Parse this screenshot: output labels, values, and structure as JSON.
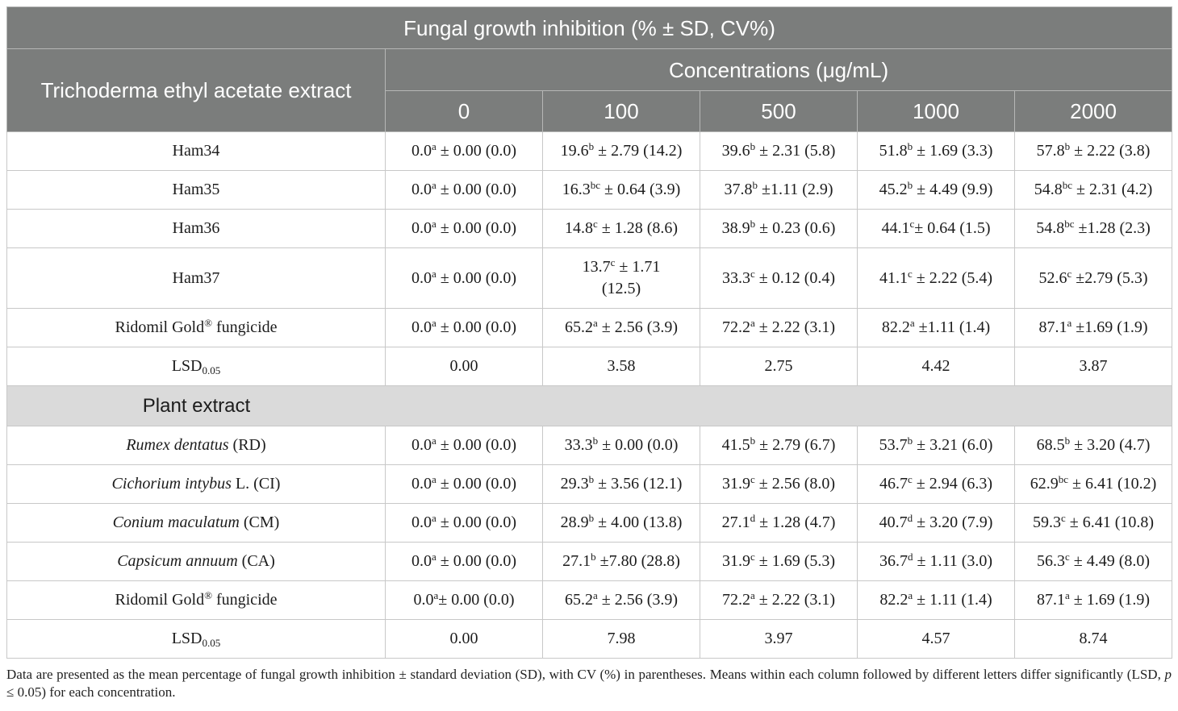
{
  "colors": {
    "header_bg": "#7b7d7c",
    "header_text": "#ffffff",
    "header_rule": "#b6b7b6",
    "section_bg": "#dadada",
    "grid_line": "#c8c8c8",
    "body_text": "#1c1c1c"
  },
  "header": {
    "title": "Fungal growth inhibition (% ± SD, CV%)",
    "row_header": "Trichoderma ethyl acetate extract",
    "concentrations_label": "Concentrations (μg/mL)",
    "concentrations": [
      "0",
      "100",
      "500",
      "1000",
      "2000"
    ]
  },
  "trichoderma": {
    "rows": [
      {
        "label": [
          {
            "t": "Ham34"
          }
        ],
        "values": [
          {
            "v": "0.0",
            "sup": "a",
            "rest": " ± 0.00 (0.0)"
          },
          {
            "v": "19.6",
            "sup": "b",
            "rest": " ± 2.79 (14.2)"
          },
          {
            "v": "39.6",
            "sup": "b",
            "rest": " ± 2.31 (5.8)"
          },
          {
            "v": "51.8",
            "sup": "b",
            "rest": " ± 1.69 (3.3)"
          },
          {
            "v": "57.8",
            "sup": "b",
            "rest": " ± 2.22 (3.8)"
          }
        ]
      },
      {
        "label": [
          {
            "t": "Ham35"
          }
        ],
        "values": [
          {
            "v": "0.0",
            "sup": "a",
            "rest": " ± 0.00 (0.0)"
          },
          {
            "v": "16.3",
            "sup": "bc",
            "rest": " ± 0.64 (3.9)"
          },
          {
            "v": "37.8",
            "sup": "b",
            "rest": " ±1.11 (2.9)"
          },
          {
            "v": "45.2",
            "sup": "b",
            "rest": " ± 4.49 (9.9)"
          },
          {
            "v": "54.8",
            "sup": "bc",
            "rest": " ± 2.31 (4.2)"
          }
        ]
      },
      {
        "label": [
          {
            "t": "Ham36"
          }
        ],
        "values": [
          {
            "v": "0.0",
            "sup": "a",
            "rest": " ± 0.00 (0.0)"
          },
          {
            "v": "14.8",
            "sup": "c",
            "rest": " ± 1.28 (8.6)"
          },
          {
            "v": "38.9",
            "sup": "b",
            "rest": " ± 0.23 (0.6)"
          },
          {
            "v": "44.1",
            "sup": "c",
            "rest": "± 0.64 (1.5)"
          },
          {
            "v": "54.8",
            "sup": "bc",
            "rest": " ±1.28 (2.3)"
          }
        ]
      },
      {
        "label": [
          {
            "t": "Ham37"
          }
        ],
        "values": [
          {
            "v": "0.0",
            "sup": "a",
            "rest": " ± 0.00 (0.0)"
          },
          {
            "v": "13.7",
            "sup": "c",
            "rest": " ± 1.71 (12.5)"
          },
          {
            "v": "33.3",
            "sup": "c",
            "rest": " ± 0.12 (0.4)"
          },
          {
            "v": "41.1",
            "sup": "c",
            "rest": " ± 2.22 (5.4)"
          },
          {
            "v": "52.6",
            "sup": "c",
            "rest": " ±2.79 (5.3)"
          }
        ]
      },
      {
        "label": [
          {
            "t": "Ridomil Gold"
          },
          {
            "sup": "®"
          },
          {
            "t": " fungicide"
          }
        ],
        "values": [
          {
            "v": "0.0",
            "sup": "a",
            "rest": " ± 0.00 (0.0)"
          },
          {
            "v": "65.2",
            "sup": "a",
            "rest": " ± 2.56 (3.9)"
          },
          {
            "v": "72.2",
            "sup": "a",
            "rest": " ± 2.22 (3.1)"
          },
          {
            "v": "82.2",
            "sup": "a",
            "rest": " ±1.11 (1.4)"
          },
          {
            "v": "87.1",
            "sup": "a",
            "rest": " ±1.69 (1.9)"
          }
        ]
      },
      {
        "label": [
          {
            "t": "LSD"
          },
          {
            "sub": "0.05"
          }
        ],
        "values": [
          {
            "v": "0.00"
          },
          {
            "v": "3.58"
          },
          {
            "v": "2.75"
          },
          {
            "v": "4.42"
          },
          {
            "v": "3.87"
          }
        ]
      }
    ]
  },
  "plant_extract": {
    "header": "Plant extract",
    "rows": [
      {
        "label": [
          {
            "i": "Rumex dentatus"
          },
          {
            "t": " (RD)"
          }
        ],
        "values": [
          {
            "v": "0.0",
            "sup": "a",
            "rest": " ± 0.00 (0.0)"
          },
          {
            "v": "33.3",
            "sup": "b",
            "rest": " ± 0.00 (0.0)"
          },
          {
            "v": "41.5",
            "sup": "b",
            "rest": " ± 2.79 (6.7)"
          },
          {
            "v": "53.7",
            "sup": "b",
            "rest": " ± 3.21 (6.0)"
          },
          {
            "v": "68.5",
            "sup": "b",
            "rest": " ± 3.20 (4.7)"
          }
        ]
      },
      {
        "label": [
          {
            "i": "Cichorium intybus"
          },
          {
            "t": " L. (CI)"
          }
        ],
        "values": [
          {
            "v": "0.0",
            "sup": "a",
            "rest": " ± 0.00 (0.0)"
          },
          {
            "v": "29.3",
            "sup": "b",
            "rest": " ± 3.56 (12.1)"
          },
          {
            "v": "31.9",
            "sup": "c",
            "rest": " ± 2.56 (8.0)"
          },
          {
            "v": "46.7",
            "sup": "c",
            "rest": " ± 2.94 (6.3)"
          },
          {
            "v": "62.9",
            "sup": "bc",
            "rest": " ± 6.41 (10.2)"
          }
        ]
      },
      {
        "label": [
          {
            "i": "Conium maculatum"
          },
          {
            "t": " (CM)"
          }
        ],
        "values": [
          {
            "v": "0.0",
            "sup": "a",
            "rest": " ± 0.00 (0.0)"
          },
          {
            "v": "28.9",
            "sup": "b",
            "rest": " ± 4.00 (13.8)"
          },
          {
            "v": "27.1",
            "sup": "d",
            "rest": " ± 1.28 (4.7)"
          },
          {
            "v": "40.7",
            "sup": "d",
            "rest": " ± 3.20 (7.9)"
          },
          {
            "v": "59.3",
            "sup": "c",
            "rest": " ± 6.41 (10.8)"
          }
        ]
      },
      {
        "label": [
          {
            "i": "Capsicum annuum"
          },
          {
            "t": " (CA)"
          }
        ],
        "values": [
          {
            "v": "0.0",
            "sup": "a",
            "rest": " ± 0.00 (0.0)"
          },
          {
            "v": "27.1",
            "sup": "b",
            "rest": " ±7.80 (28.8)"
          },
          {
            "v": "31.9",
            "sup": "c",
            "rest": " ± 1.69 (5.3)"
          },
          {
            "v": "36.7",
            "sup": "d",
            "rest": " ± 1.11 (3.0)"
          },
          {
            "v": "56.3",
            "sup": "c",
            "rest": " ± 4.49 (8.0)"
          }
        ]
      },
      {
        "label": [
          {
            "t": "Ridomil Gold"
          },
          {
            "sup": "®"
          },
          {
            "t": " fungicide"
          }
        ],
        "values": [
          {
            "v": "0.0",
            "sup": "a",
            "rest": "± 0.00 (0.0)"
          },
          {
            "v": "65.2",
            "sup": "a",
            "rest": " ± 2.56 (3.9)"
          },
          {
            "v": "72.2",
            "sup": "a",
            "rest": " ± 2.22 (3.1)"
          },
          {
            "v": "82.2",
            "sup": "a",
            "rest": " ± 1.11 (1.4)"
          },
          {
            "v": "87.1",
            "sup": "a",
            "rest": " ± 1.69 (1.9)"
          }
        ]
      },
      {
        "label": [
          {
            "t": "LSD"
          },
          {
            "sub": "0.05"
          }
        ],
        "values": [
          {
            "v": "0.00"
          },
          {
            "v": "7.98"
          },
          {
            "v": "3.97"
          },
          {
            "v": "4.57"
          },
          {
            "v": "8.74"
          }
        ]
      }
    ]
  },
  "footnote": [
    {
      "t": "Data are presented as the mean percentage of fungal growth inhibition ± standard deviation (SD), with CV (%) in parentheses. Means within each column followed by different letters differ significantly (LSD, "
    },
    {
      "i": "p"
    },
    {
      "t": " ≤ 0.05) for each concentration."
    }
  ]
}
